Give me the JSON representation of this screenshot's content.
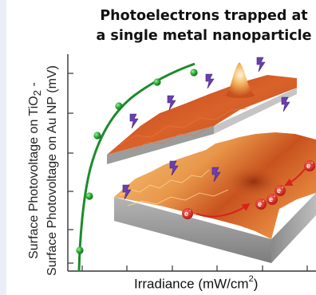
{
  "title": {
    "line1": "Photoelectrons trapped at",
    "line2": "a single metal nanoparticle"
  },
  "axes": {
    "ylabel_line1": "Surface Photovoltage on TiO",
    "ylabel_line1_sub": "2",
    "ylabel_line1_end": " -",
    "ylabel_line2": "Surface Photovoltage on Au NP (mV)",
    "xlabel": "Irradiance (mW/cm",
    "xlabel_sup": "2",
    "xlabel_end": ")"
  },
  "diagram": {
    "electron_label": "e",
    "electron_charge": "-"
  },
  "colors": {
    "curve": "#1e8a2e",
    "point": "#2aa83a",
    "arrow": "#d8221e",
    "lightning": "#6a3fb0",
    "surface_hot": "#c84a18",
    "surface_light": "#f2b26a",
    "block_side": "#9a9a9a"
  }
}
